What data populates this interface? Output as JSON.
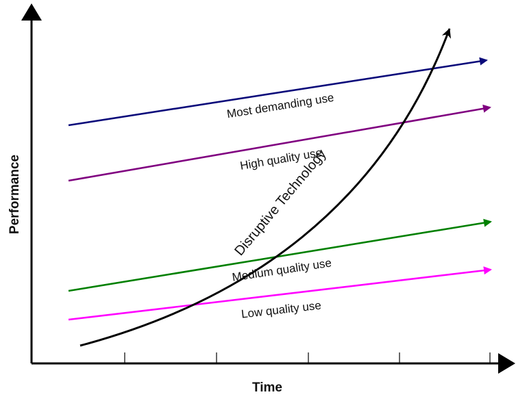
{
  "axes": {
    "y_label": "Performance",
    "x_label": "Time"
  },
  "lines": [
    {
      "id": "most-demanding",
      "label": "Most demanding use",
      "color": "#0a0a7a"
    },
    {
      "id": "high-quality",
      "label": "High quality use",
      "color": "#800080"
    },
    {
      "id": "medium-quality",
      "label": "Medium quality use",
      "color": "#008000"
    },
    {
      "id": "low-quality",
      "label": "Low quality use",
      "color": "#ff00ff"
    }
  ],
  "curve": {
    "label": "Disruptive Technology",
    "color": "#000000"
  }
}
